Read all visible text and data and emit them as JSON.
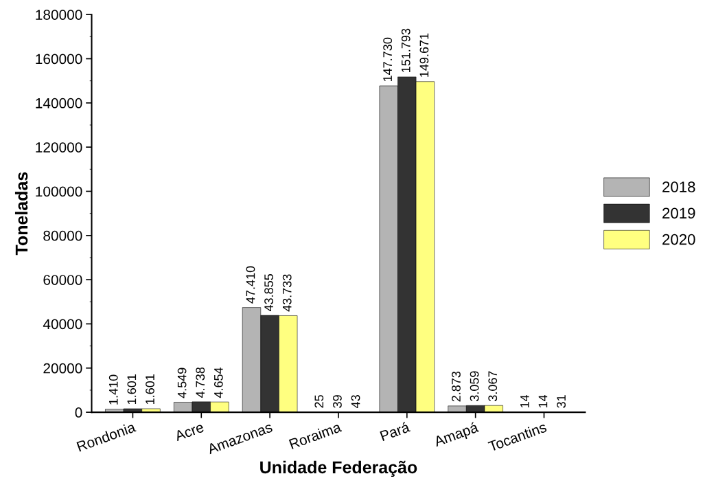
{
  "chart_data": {
    "type": "bar",
    "xlabel": "Unidade Federação",
    "ylabel": "Toneladas",
    "categories": [
      "Rondonia",
      "Acre",
      "Amazonas",
      "Roraima",
      "Pará",
      "Amapá",
      "Tocantins"
    ],
    "series": [
      {
        "name": "2018",
        "color": "#b4b4b4",
        "values": [
          1410,
          4549,
          47410,
          25,
          147730,
          2873,
          14
        ],
        "value_labels": [
          "1.410",
          "4.549",
          "47.410",
          "25",
          "147.730",
          "2.873",
          "14"
        ]
      },
      {
        "name": "2019",
        "color": "#333333",
        "values": [
          1601,
          4738,
          43855,
          39,
          151793,
          3059,
          14
        ],
        "value_labels": [
          "1.601",
          "4.738",
          "43.855",
          "39",
          "151.793",
          "3.059",
          "14"
        ]
      },
      {
        "name": "2020",
        "color": "#ffff80",
        "values": [
          1601,
          4654,
          43733,
          43,
          149671,
          3067,
          31
        ],
        "value_labels": [
          "1.601",
          "4.654",
          "43.733",
          "43",
          "149.671",
          "3.067",
          "31"
        ]
      }
    ],
    "ylim": [
      0,
      180000
    ],
    "yticks": [
      0,
      20000,
      40000,
      60000,
      80000,
      100000,
      120000,
      140000,
      160000,
      180000
    ],
    "grid": false,
    "legend": "right"
  }
}
